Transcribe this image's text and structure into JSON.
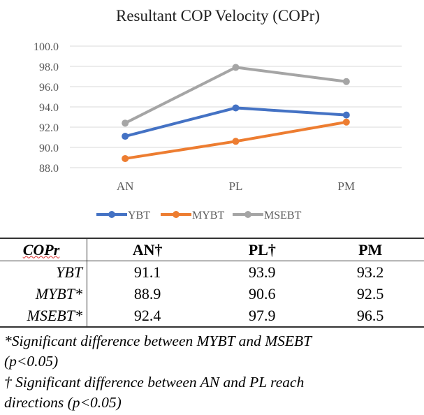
{
  "chart_data": {
    "type": "line",
    "title": "Resultant COP Velocity (COPr)",
    "categories": [
      "AN",
      "PL",
      "PM"
    ],
    "ylim": [
      88,
      100
    ],
    "yticks": [
      "100.0",
      "98.0",
      "96.0",
      "94.0",
      "92.0",
      "90.0",
      "88.0"
    ],
    "ytick_values": [
      100,
      98,
      96,
      94,
      92,
      90,
      88
    ],
    "grid": true,
    "legend": "bottom",
    "series": [
      {
        "name": "YBT",
        "color": "#4472C4",
        "values": [
          91.1,
          93.9,
          93.2
        ]
      },
      {
        "name": "MYBT",
        "color": "#ED7D31",
        "values": [
          88.9,
          90.6,
          92.5
        ]
      },
      {
        "name": "MSEBT",
        "color": "#A5A5A5",
        "values": [
          92.4,
          97.9,
          96.5
        ]
      }
    ]
  },
  "table": {
    "header": [
      "COPr",
      "AN†",
      "PL†",
      "PM"
    ],
    "rows": [
      {
        "label": "YBT",
        "values": [
          "91.1",
          "93.9",
          "93.2"
        ]
      },
      {
        "label": "MYBT*",
        "values": [
          "88.9",
          "90.6",
          "92.5"
        ]
      },
      {
        "label": "MSEBT*",
        "values": [
          "92.4",
          "97.9",
          "96.5"
        ]
      }
    ]
  },
  "footnotes": [
    "*Significant difference between MYBT and MSEBT",
    "(p<0.05)",
    "† Significant difference between AN and PL reach",
    "directions (p<0.05)"
  ]
}
